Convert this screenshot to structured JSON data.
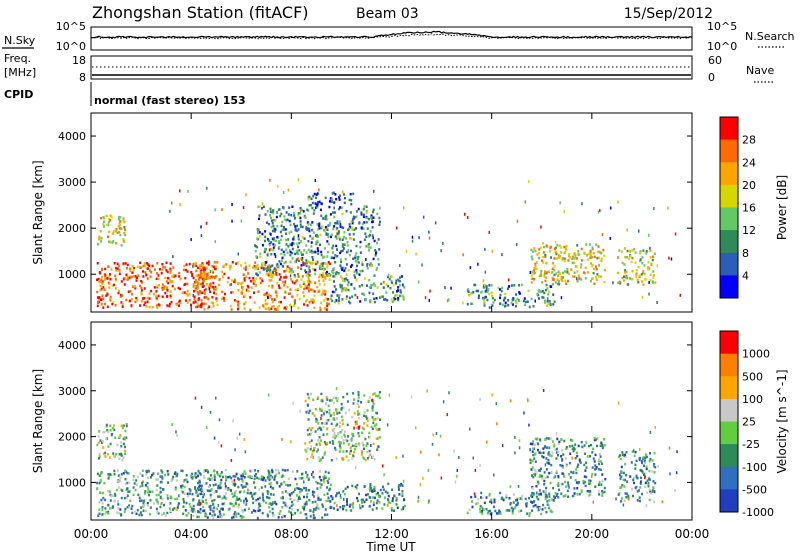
{
  "header": {
    "station": "Zhongshan Station (fitACF)",
    "beam": "Beam 03",
    "date": "15/Sep/2012"
  },
  "noise_panel": {
    "left_label": "N.Sky",
    "right_label": "N.Search",
    "left_ticks": [
      "10^5",
      "10^0"
    ],
    "right_ticks": [
      "10^5",
      "10^0"
    ]
  },
  "freq_panel": {
    "left_label_1": "Freq.",
    "left_label_2": "[MHz]",
    "right_label": "Nave",
    "left_ticks": [
      "18",
      "8"
    ],
    "right_ticks": [
      "60",
      "0"
    ]
  },
  "cpid": {
    "label": "CPID",
    "mode": "normal (fast stereo) 153"
  },
  "x_axis": {
    "title": "Time UT",
    "ticks": [
      "00:00",
      "04:00",
      "08:00",
      "12:00",
      "16:00",
      "20:00",
      "00:00"
    ]
  },
  "colors": {
    "power": [
      "#0000ff",
      "#2b5fb5",
      "#2e8b57",
      "#64c864",
      "#d6d600",
      "#ffa500",
      "#ff6a00",
      "#ff0000"
    ],
    "velocity": [
      "#1f3fbf",
      "#2e6fbf",
      "#2e8b57",
      "#5fcf3f",
      "#c8c8c8",
      "#ffa500",
      "#ff7f00",
      "#ff0000"
    ]
  },
  "chart_data": [
    {
      "type": "heatmap",
      "name": "power",
      "ylabel": "Slant Range [km]",
      "yticks": [
        "1000",
        "2000",
        "3000",
        "4000"
      ],
      "ylim": [
        180,
        4500
      ],
      "xlim_hours": [
        0,
        24
      ],
      "colorbar": {
        "title": "Power [dB]",
        "tick_labels": [
          "28",
          "24",
          "20",
          "16",
          "12",
          "8",
          "4"
        ],
        "range": [
          0,
          30
        ]
      },
      "echo_regions": [
        {
          "t": [
            0.2,
            1.4
          ],
          "r": [
            1600,
            2300
          ],
          "level": 0.6
        },
        {
          "t": [
            0.2,
            5.0
          ],
          "r": [
            300,
            1300
          ],
          "level": 0.85
        },
        {
          "t": [
            4.0,
            9.5
          ],
          "r": [
            250,
            1300
          ],
          "level": 0.75
        },
        {
          "t": [
            6.5,
            11.5
          ],
          "r": [
            1000,
            2500
          ],
          "level": 0.3
        },
        {
          "t": [
            8.5,
            10.5
          ],
          "r": [
            2500,
            2800
          ],
          "level": 0.15
        },
        {
          "t": [
            9.5,
            12.5
          ],
          "r": [
            400,
            1000
          ],
          "level": 0.35
        },
        {
          "t": [
            15.0,
            18.5
          ],
          "r": [
            300,
            800
          ],
          "level": 0.3
        },
        {
          "t": [
            17.5,
            20.5
          ],
          "r": [
            800,
            1700
          ],
          "level": 0.6
        },
        {
          "t": [
            21.0,
            22.5
          ],
          "r": [
            800,
            1600
          ],
          "level": 0.55
        }
      ]
    },
    {
      "type": "heatmap",
      "name": "velocity",
      "ylabel": "Slant Range [km]",
      "yticks": [
        "1000",
        "2000",
        "3000",
        "4000"
      ],
      "ylim": [
        180,
        4500
      ],
      "xlim_hours": [
        0,
        24
      ],
      "colorbar": {
        "title": "Velocity [m s^-1]",
        "tick_labels": [
          "1000",
          "500",
          "100",
          "25",
          "-25",
          "-100",
          "-500",
          "-1000"
        ],
        "range": [
          -1200,
          1200
        ]
      },
      "echo_regions": [
        {
          "t": [
            0.2,
            1.4
          ],
          "r": [
            1500,
            2300
          ],
          "level": 0.45
        },
        {
          "t": [
            0.2,
            5.0
          ],
          "r": [
            300,
            1300
          ],
          "level": 0.35
        },
        {
          "t": [
            4.0,
            9.5
          ],
          "r": [
            250,
            1300
          ],
          "level": 0.3
        },
        {
          "t": [
            8.5,
            11.5
          ],
          "r": [
            1500,
            3000
          ],
          "level": 0.45
        },
        {
          "t": [
            9.5,
            12.5
          ],
          "r": [
            400,
            1000
          ],
          "level": 0.25
        },
        {
          "t": [
            15.0,
            18.5
          ],
          "r": [
            300,
            800
          ],
          "level": 0.3
        },
        {
          "t": [
            17.5,
            20.5
          ],
          "r": [
            700,
            2000
          ],
          "level": 0.3
        },
        {
          "t": [
            21.0,
            22.5
          ],
          "r": [
            600,
            1700
          ],
          "level": 0.3
        }
      ]
    }
  ]
}
